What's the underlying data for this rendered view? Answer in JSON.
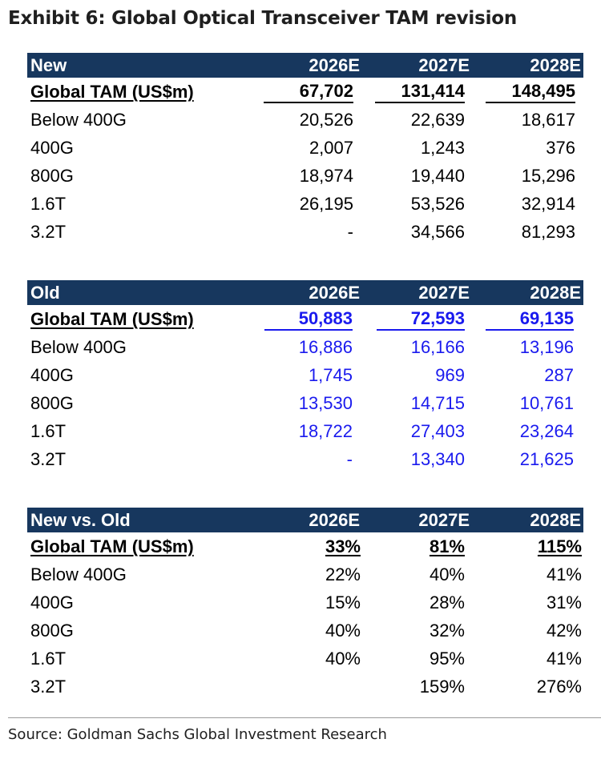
{
  "title": "Exhibit 6: Global Optical Transceiver TAM revision",
  "colors": {
    "header_bg": "#17375e",
    "header_text": "#ffffff",
    "old_values": "#1a1aee",
    "text": "#000000"
  },
  "sections": [
    {
      "key": "new",
      "header": [
        "New",
        "2026E",
        "2027E",
        "2028E"
      ],
      "value_color": "#000000",
      "total": [
        "Global TAM (US$m)",
        "67,702",
        "131,414",
        "148,495"
      ],
      "rows": [
        [
          "Below 400G",
          "20,526",
          "22,639",
          "18,617"
        ],
        [
          "400G",
          "2,007",
          "1,243",
          "376"
        ],
        [
          "800G",
          "18,974",
          "19,440",
          "15,296"
        ],
        [
          "1.6T",
          "26,195",
          "53,526",
          "32,914"
        ],
        [
          "3.2T",
          "-",
          "34,566",
          "81,293"
        ]
      ]
    },
    {
      "key": "old",
      "header": [
        "Old",
        "2026E",
        "2027E",
        "2028E"
      ],
      "value_color": "#1a1aee",
      "total": [
        "Global TAM (US$m)",
        "50,883",
        "72,593",
        "69,135"
      ],
      "rows": [
        [
          "Below 400G",
          "16,886",
          "16,166",
          "13,196"
        ],
        [
          "400G",
          "1,745",
          "969",
          "287"
        ],
        [
          "800G",
          "13,530",
          "14,715",
          "10,761"
        ],
        [
          "1.6T",
          "18,722",
          "27,403",
          "23,264"
        ],
        [
          "3.2T",
          "-",
          "13,340",
          "21,625"
        ]
      ]
    },
    {
      "key": "diff",
      "header": [
        "New vs. Old",
        "2026E",
        "2027E",
        "2028E"
      ],
      "value_color": "#000000",
      "total": [
        "Global TAM (US$m)",
        "33%",
        "81%",
        "115%"
      ],
      "rows": [
        [
          "Below 400G",
          "22%",
          "40%",
          "41%"
        ],
        [
          "400G",
          "15%",
          "28%",
          "31%"
        ],
        [
          "800G",
          "40%",
          "32%",
          "42%"
        ],
        [
          "1.6T",
          "40%",
          "95%",
          "41%"
        ],
        [
          "3.2T",
          "",
          "159%",
          "276%"
        ]
      ]
    }
  ],
  "source": "Source: Goldman Sachs Global Investment Research"
}
